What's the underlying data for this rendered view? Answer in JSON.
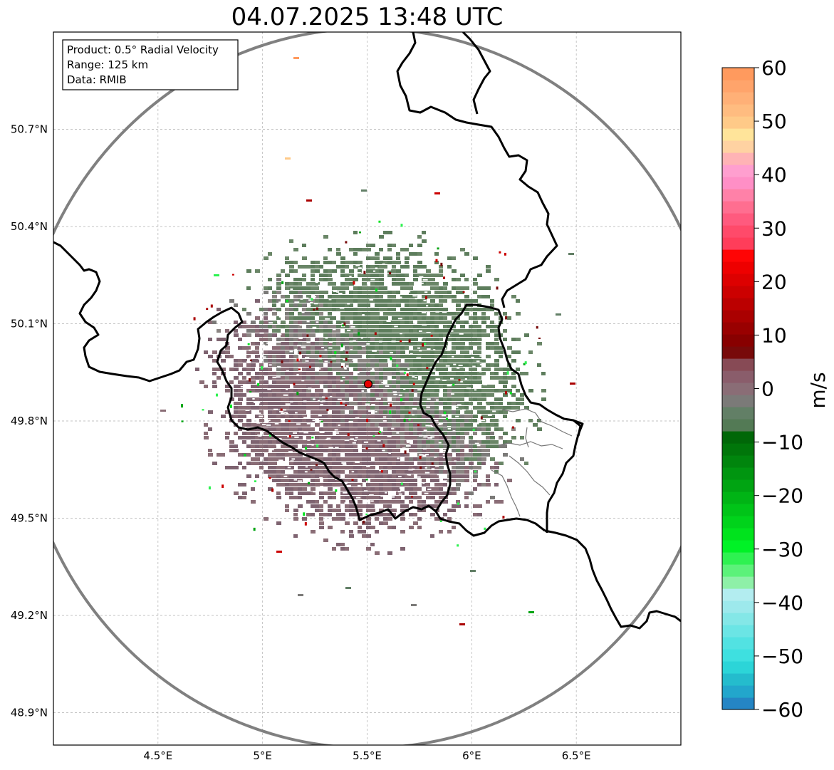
{
  "title": "04.07.2025 13:48 UTC",
  "info_box": {
    "product": "Product: 0.5° Radial Velocity",
    "range": "Range: 125 km",
    "data": "Data: RMIB"
  },
  "map": {
    "lon_range": [
      4.0,
      7.0
    ],
    "lat_range": [
      48.8,
      51.0
    ],
    "lon_ticks": [
      {
        "value": 4.5,
        "label": "4.5°E"
      },
      {
        "value": 5.0,
        "label": "5°E"
      },
      {
        "value": 5.5,
        "label": "5.5°E"
      },
      {
        "value": 6.0,
        "label": "6°E"
      },
      {
        "value": 6.5,
        "label": "6.5°E"
      }
    ],
    "lat_ticks": [
      {
        "value": 50.7,
        "label": "50.7°N"
      },
      {
        "value": 50.4,
        "label": "50.4°N"
      },
      {
        "value": 50.1,
        "label": "50.1°N"
      },
      {
        "value": 49.8,
        "label": "49.8°N"
      },
      {
        "value": 49.5,
        "label": "49.5°N"
      },
      {
        "value": 49.2,
        "label": "49.2°N"
      },
      {
        "value": 48.9,
        "label": "48.9°N"
      }
    ],
    "radar_site": {
      "lon": 5.505,
      "lat": 49.914,
      "color": "#e60000"
    },
    "range_ring_color": "#808080",
    "grid": true
  },
  "colorbar": {
    "unit": "m/s",
    "min": -60,
    "max": 60,
    "ticks": [
      {
        "value": 60,
        "label": "60"
      },
      {
        "value": 50,
        "label": "50"
      },
      {
        "value": 40,
        "label": "40"
      },
      {
        "value": 30,
        "label": "30"
      },
      {
        "value": 20,
        "label": "20"
      },
      {
        "value": 10,
        "label": "10"
      },
      {
        "value": 0,
        "label": "0"
      },
      {
        "value": -10,
        "label": "−10"
      },
      {
        "value": -20,
        "label": "−20"
      },
      {
        "value": -30,
        "label": "−30"
      },
      {
        "value": -40,
        "label": "−40"
      },
      {
        "value": -50,
        "label": "−50"
      },
      {
        "value": -60,
        "label": "−60"
      }
    ],
    "colors": [
      "#2585c4",
      "#22a6cc",
      "#24bccd",
      "#2cd5d8",
      "#3ee0e0",
      "#52e2e2",
      "#6be5e5",
      "#84e7e7",
      "#9de9ec",
      "#b3edf0",
      "#8ef0a8",
      "#5cf27a",
      "#2ef251",
      "#00f226",
      "#00e31d",
      "#00d31b",
      "#00c418",
      "#00b415",
      "#00a412",
      "#009510",
      "#00850d",
      "#00760a",
      "#006708",
      "#537a55",
      "#627f66",
      "#7b7a78",
      "#8a6d76",
      "#8a5d6b",
      "#874a55",
      "#780a0a",
      "#880000",
      "#990000",
      "#aa0000",
      "#bb0000",
      "#cc0000",
      "#dd0000",
      "#ee0000",
      "#ff0505",
      "#ff3d5a",
      "#ff4a6a",
      "#ff5a7e",
      "#ff6e90",
      "#ff81a8",
      "#ff8fc6",
      "#ff9fcf",
      "#ffb3b5",
      "#ffd2a2",
      "#ffe49a",
      "#ffca88",
      "#ffbc80",
      "#ffb077",
      "#ffa46b",
      "#ff9a5e"
    ]
  }
}
